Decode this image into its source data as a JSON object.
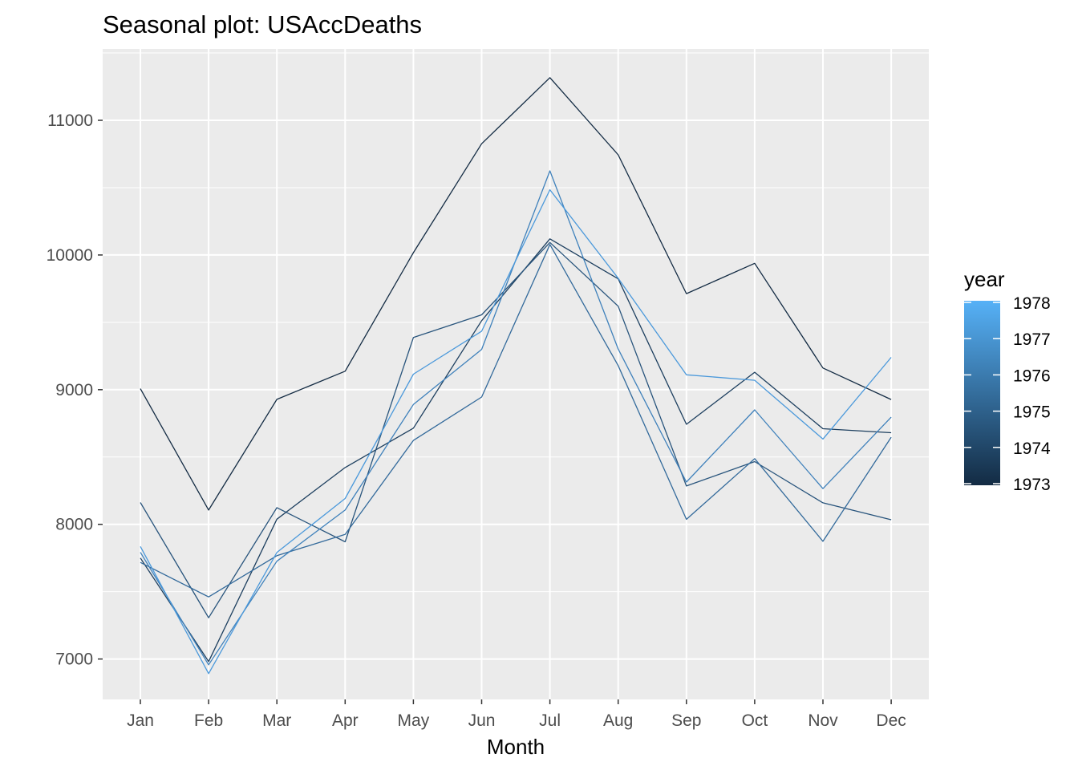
{
  "chart_data": {
    "type": "line",
    "title": "Seasonal plot: USAccDeaths",
    "xlabel": "Month",
    "ylabel": "",
    "categories": [
      "Jan",
      "Feb",
      "Mar",
      "Apr",
      "May",
      "Jun",
      "Jul",
      "Aug",
      "Sep",
      "Oct",
      "Nov",
      "Dec"
    ],
    "ylim": [
      6700,
      11530
    ],
    "yticks": [
      7000,
      8000,
      9000,
      10000,
      11000
    ],
    "grid": true,
    "legend": {
      "title": "year",
      "position": "right",
      "type": "colorbar",
      "labels": [
        "1978",
        "1977",
        "1976",
        "1975",
        "1974",
        "1973"
      ],
      "low_color": "#132B43",
      "high_color": "#56B1F7",
      "range": [
        1973,
        1978
      ]
    },
    "series": [
      {
        "year": 1973,
        "color": "#132B43",
        "values": [
          9007,
          8106,
          8928,
          9137,
          10017,
          10826,
          11317,
          10744,
          9713,
          9938,
          9161,
          8927
        ]
      },
      {
        "year": 1974,
        "color": "#1D3F5F",
        "values": [
          7750,
          6981,
          8038,
          8422,
          8714,
          9512,
          10120,
          9823,
          8743,
          9129,
          8710,
          8680
        ]
      },
      {
        "year": 1975,
        "color": "#28547C",
        "values": [
          8162,
          7306,
          8124,
          7870,
          9387,
          9556,
          10093,
          9620,
          8285,
          8466,
          8160,
          8034
        ]
      },
      {
        "year": 1976,
        "color": "#336A9B",
        "values": [
          7717,
          7461,
          7767,
          7925,
          8623,
          8945,
          10078,
          9179,
          8037,
          8488,
          7874,
          8647
        ]
      },
      {
        "year": 1977,
        "color": "#3F81BB",
        "values": [
          7792,
          6957,
          7726,
          8106,
          8890,
          9299,
          10625,
          9302,
          8314,
          8850,
          8265,
          8796
        ]
      },
      {
        "year": 1978,
        "color": "#4B99DB",
        "values": [
          7836,
          6892,
          7791,
          8192,
          9115,
          9434,
          10484,
          9827,
          9110,
          9070,
          8633,
          9240
        ]
      }
    ]
  }
}
